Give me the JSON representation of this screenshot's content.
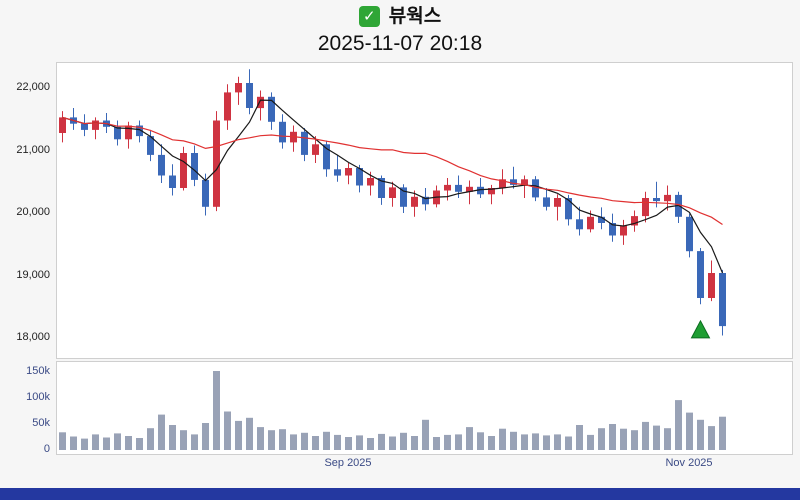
{
  "header": {
    "checkbox_icon": "✓",
    "checkbox_color": "#2fa636",
    "title": "뷰웍스",
    "subtitle": "2025-11-07 20:18"
  },
  "chrome": {
    "background": "#f6f6f6",
    "footer_color": "#2438a0"
  },
  "chart_data": {
    "type": "candlestick",
    "title": "뷰웍스",
    "subtitle": "2025-11-07 20:18",
    "legend_position": "none",
    "grid": false,
    "price_axis": {
      "ticks": [
        22000,
        21000,
        20000,
        19000,
        18000
      ],
      "labels": [
        "22,000",
        "21,000",
        "20,000",
        "19,000",
        "18,000"
      ],
      "range": [
        17700,
        22420
      ]
    },
    "volume_axis": {
      "ticks": [
        150000,
        100000,
        50000,
        0
      ],
      "labels": [
        "150k",
        "100k",
        "50k",
        "0"
      ],
      "range": [
        0,
        168000
      ]
    },
    "x_labels": [
      {
        "label": "Sep 2025",
        "index": 26
      },
      {
        "label": "Nov 2025",
        "index": 57
      }
    ],
    "colors": {
      "up": "#cf3341",
      "down": "#3a68b8",
      "volume": "#99a2b6",
      "ma_short": "#1a1a1a",
      "ma_long": "#e03131"
    },
    "moving_averages": [
      {
        "name": "short",
        "period": 5,
        "color": "#1a1a1a"
      },
      {
        "name": "long",
        "period": 20,
        "color": "#e03131"
      }
    ],
    "marker": {
      "index": 58,
      "price": 18150,
      "shape": "triangle-up",
      "color": "#1f9e33"
    },
    "series": {
      "columns": [
        "open",
        "high",
        "low",
        "close",
        "volume"
      ],
      "candles": [
        [
          21300,
          21650,
          21150,
          21550,
          34000
        ],
        [
          21550,
          21700,
          21350,
          21450,
          26000
        ],
        [
          21450,
          21600,
          21250,
          21350,
          22000
        ],
        [
          21350,
          21550,
          21200,
          21500,
          30000
        ],
        [
          21500,
          21620,
          21300,
          21400,
          24000
        ],
        [
          21400,
          21500,
          21100,
          21200,
          32000
        ],
        [
          21200,
          21480,
          21050,
          21420,
          27000
        ],
        [
          21420,
          21500,
          21150,
          21250,
          23000
        ],
        [
          21250,
          21350,
          20850,
          20950,
          42000
        ],
        [
          20950,
          21120,
          20500,
          20620,
          68000
        ],
        [
          20620,
          20800,
          20300,
          20420,
          48000
        ],
        [
          20420,
          21080,
          20380,
          20980,
          38000
        ],
        [
          20980,
          21100,
          20450,
          20550,
          30000
        ],
        [
          20550,
          20650,
          19980,
          20120,
          52000
        ],
        [
          20120,
          21650,
          20050,
          21500,
          152000
        ],
        [
          21500,
          22080,
          21350,
          21950,
          74000
        ],
        [
          21950,
          22200,
          21750,
          22100,
          56000
        ],
        [
          22100,
          22320,
          21600,
          21700,
          62000
        ],
        [
          21700,
          21980,
          21500,
          21880,
          44000
        ],
        [
          21880,
          21950,
          21350,
          21480,
          38000
        ],
        [
          21480,
          21600,
          21050,
          21150,
          40000
        ],
        [
          21150,
          21420,
          21000,
          21320,
          30000
        ],
        [
          21320,
          21380,
          20850,
          20950,
          33000
        ],
        [
          20950,
          21250,
          20820,
          21120,
          27000
        ],
        [
          21120,
          21180,
          20600,
          20720,
          35000
        ],
        [
          20720,
          20950,
          20520,
          20620,
          29000
        ],
        [
          20620,
          20820,
          20480,
          20740,
          25000
        ],
        [
          20740,
          20790,
          20350,
          20460,
          28000
        ],
        [
          20460,
          20680,
          20300,
          20580,
          23000
        ],
        [
          20580,
          20620,
          20150,
          20260,
          31000
        ],
        [
          20260,
          20520,
          20120,
          20430,
          26000
        ],
        [
          20430,
          20480,
          20020,
          20120,
          33000
        ],
        [
          20120,
          20380,
          19960,
          20280,
          27000
        ],
        [
          20280,
          20420,
          20060,
          20160,
          58000
        ],
        [
          20160,
          20460,
          20110,
          20380,
          25000
        ],
        [
          20380,
          20580,
          20220,
          20470,
          29000
        ],
        [
          20470,
          20620,
          20260,
          20360,
          30000
        ],
        [
          20360,
          20540,
          20160,
          20440,
          44000
        ],
        [
          20440,
          20580,
          20260,
          20320,
          34000
        ],
        [
          20320,
          20470,
          20160,
          20420,
          27000
        ],
        [
          20420,
          20720,
          20320,
          20560,
          41000
        ],
        [
          20560,
          20760,
          20410,
          20470,
          35000
        ],
        [
          20470,
          20620,
          20260,
          20560,
          30000
        ],
        [
          20560,
          20610,
          20210,
          20270,
          32000
        ],
        [
          20270,
          20420,
          20060,
          20120,
          28000
        ],
        [
          20120,
          20320,
          19900,
          20260,
          30000
        ],
        [
          20260,
          20310,
          19820,
          19920,
          26000
        ],
        [
          19920,
          20120,
          19660,
          19760,
          48000
        ],
        [
          19760,
          20060,
          19710,
          19960,
          29000
        ],
        [
          19960,
          20110,
          19760,
          19860,
          42000
        ],
        [
          19860,
          20010,
          19560,
          19660,
          50000
        ],
        [
          19660,
          19910,
          19510,
          19820,
          41000
        ],
        [
          19820,
          20060,
          19720,
          19970,
          38000
        ],
        [
          19970,
          20360,
          19870,
          20260,
          54000
        ],
        [
          20260,
          20520,
          20110,
          20210,
          47000
        ],
        [
          20210,
          20460,
          20060,
          20310,
          42000
        ],
        [
          20310,
          20360,
          19860,
          19960,
          96000
        ],
        [
          19960,
          20010,
          19310,
          19410,
          72000
        ],
        [
          19410,
          19460,
          18560,
          18660,
          58000
        ],
        [
          18660,
          19260,
          18610,
          19060,
          46000
        ],
        [
          19060,
          19110,
          18060,
          18210,
          64000
        ]
      ]
    }
  }
}
